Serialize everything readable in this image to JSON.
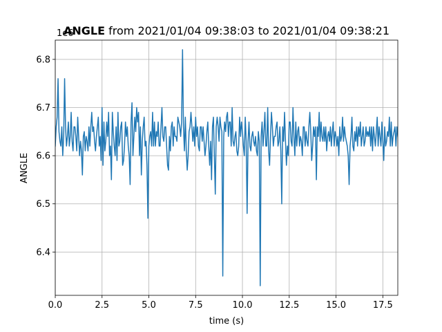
{
  "chart_data": {
    "type": "line",
    "title_bold": "ANGLE",
    "title_rest": " from 2021/01/04 09:38:03 to 2021/01/04 09:38:21",
    "xlabel": "time (s)",
    "ylabel": "ANGLE",
    "offset_text": "1e6",
    "xlim": [
      0,
      18.3
    ],
    "ylim": [
      6.31,
      6.84
    ],
    "xticks": [
      0.0,
      2.5,
      5.0,
      7.5,
      10.0,
      12.5,
      15.0,
      17.5
    ],
    "xtick_labels": [
      "0.0",
      "2.5",
      "5.0",
      "7.5",
      "10.0",
      "12.5",
      "15.0",
      "17.5"
    ],
    "yticks": [
      6.4,
      6.5,
      6.6,
      6.7,
      6.8
    ],
    "ytick_labels": [
      "6.4",
      "6.5",
      "6.6",
      "6.7",
      "6.8"
    ],
    "grid": true,
    "series": [
      {
        "color": "#1f77b4",
        "x_step": 0.05,
        "x_start": 0.0,
        "values": [
          6.62,
          6.66,
          6.68,
          6.76,
          6.65,
          6.63,
          6.62,
          6.66,
          6.6,
          6.64,
          6.76,
          6.66,
          6.62,
          6.64,
          6.67,
          6.62,
          6.64,
          6.69,
          6.63,
          6.61,
          6.66,
          6.66,
          6.64,
          6.61,
          6.68,
          6.64,
          6.6,
          6.63,
          6.61,
          6.56,
          6.64,
          6.65,
          6.61,
          6.64,
          6.63,
          6.61,
          6.66,
          6.62,
          6.66,
          6.69,
          6.65,
          6.66,
          6.63,
          6.61,
          6.64,
          6.66,
          6.68,
          6.62,
          6.64,
          6.59,
          6.7,
          6.58,
          6.67,
          6.61,
          6.63,
          6.67,
          6.64,
          6.69,
          6.6,
          6.62,
          6.55,
          6.69,
          6.65,
          6.62,
          6.6,
          6.66,
          6.59,
          6.69,
          6.62,
          6.63,
          6.66,
          6.67,
          6.58,
          6.59,
          6.62,
          6.67,
          6.64,
          6.66,
          6.62,
          6.6,
          6.54,
          6.67,
          6.71,
          6.6,
          6.64,
          6.68,
          6.65,
          6.7,
          6.67,
          6.69,
          6.6,
          6.66,
          6.56,
          6.63,
          6.66,
          6.68,
          6.62,
          6.63,
          6.58,
          6.47,
          6.62,
          6.64,
          6.65,
          6.62,
          6.69,
          6.62,
          6.67,
          6.62,
          6.65,
          6.64,
          6.67,
          6.62,
          6.62,
          6.66,
          6.7,
          6.64,
          6.63,
          6.66,
          6.66,
          6.62,
          6.58,
          6.57,
          6.64,
          6.61,
          6.66,
          6.67,
          6.62,
          6.66,
          6.64,
          6.64,
          6.63,
          6.68,
          6.67,
          6.66,
          6.64,
          6.67,
          6.82,
          6.66,
          6.61,
          6.68,
          6.61,
          6.57,
          6.6,
          6.65,
          6.66,
          6.69,
          6.66,
          6.63,
          6.66,
          6.62,
          6.68,
          6.64,
          6.66,
          6.62,
          6.61,
          6.66,
          6.66,
          6.63,
          6.66,
          6.63,
          6.6,
          6.62,
          6.65,
          6.67,
          6.62,
          6.58,
          6.63,
          6.55,
          6.66,
          6.68,
          6.6,
          6.52,
          6.66,
          6.68,
          6.66,
          6.63,
          6.68,
          6.66,
          6.65,
          6.35,
          6.64,
          6.67,
          6.65,
          6.68,
          6.69,
          6.64,
          6.67,
          6.67,
          6.62,
          6.7,
          6.63,
          6.62,
          6.64,
          6.65,
          6.61,
          6.6,
          6.62,
          6.68,
          6.64,
          6.67,
          6.65,
          6.62,
          6.6,
          6.68,
          6.63,
          6.48,
          6.63,
          6.67,
          6.62,
          6.61,
          6.64,
          6.65,
          6.63,
          6.62,
          6.64,
          6.61,
          6.6,
          6.65,
          6.63,
          6.33,
          6.64,
          6.67,
          6.62,
          6.65,
          6.69,
          6.62,
          6.62,
          6.7,
          6.61,
          6.58,
          6.64,
          6.69,
          6.66,
          6.62,
          6.64,
          6.64,
          6.66,
          6.67,
          6.62,
          6.63,
          6.66,
          6.61,
          6.5,
          6.66,
          6.63,
          6.69,
          6.63,
          6.58,
          6.62,
          6.6,
          6.67,
          6.67,
          6.63,
          6.62,
          6.7,
          6.64,
          6.6,
          6.67,
          6.62,
          6.65,
          6.66,
          6.62,
          6.64,
          6.63,
          6.6,
          6.66,
          6.66,
          6.62,
          6.65,
          6.63,
          6.62,
          6.66,
          6.69,
          6.65,
          6.59,
          6.62,
          6.66,
          6.64,
          6.66,
          6.55,
          6.66,
          6.64,
          6.69,
          6.63,
          6.67,
          6.64,
          6.63,
          6.66,
          6.63,
          6.66,
          6.61,
          6.64,
          6.65,
          6.63,
          6.66,
          6.62,
          6.65,
          6.67,
          6.62,
          6.65,
          6.64,
          6.62,
          6.64,
          6.6,
          6.66,
          6.63,
          6.64,
          6.68,
          6.63,
          6.66,
          6.64,
          6.63,
          6.62,
          6.6,
          6.54,
          6.62,
          6.64,
          6.68,
          6.62,
          6.61,
          6.65,
          6.63,
          6.66,
          6.62,
          6.66,
          6.64,
          6.67,
          6.62,
          6.64,
          6.66,
          6.62,
          6.63,
          6.66,
          6.64,
          6.65,
          6.64,
          6.66,
          6.62,
          6.66,
          6.61,
          6.66,
          6.64,
          6.62,
          6.65,
          6.68,
          6.62,
          6.66,
          6.64,
          6.62,
          6.67,
          6.63,
          6.59,
          6.66,
          6.62,
          6.63,
          6.65,
          6.64,
          6.68,
          6.62,
          6.67,
          6.62,
          6.64,
          6.65,
          6.66,
          6.62,
          6.66,
          6.64,
          6.63,
          6.62,
          6.68,
          6.6,
          6.65,
          6.63,
          6.6,
          6.66,
          6.64,
          6.59,
          6.64,
          6.67,
          6.63,
          6.61,
          6.66,
          6.62,
          6.65,
          6.64
        ]
      }
    ]
  }
}
